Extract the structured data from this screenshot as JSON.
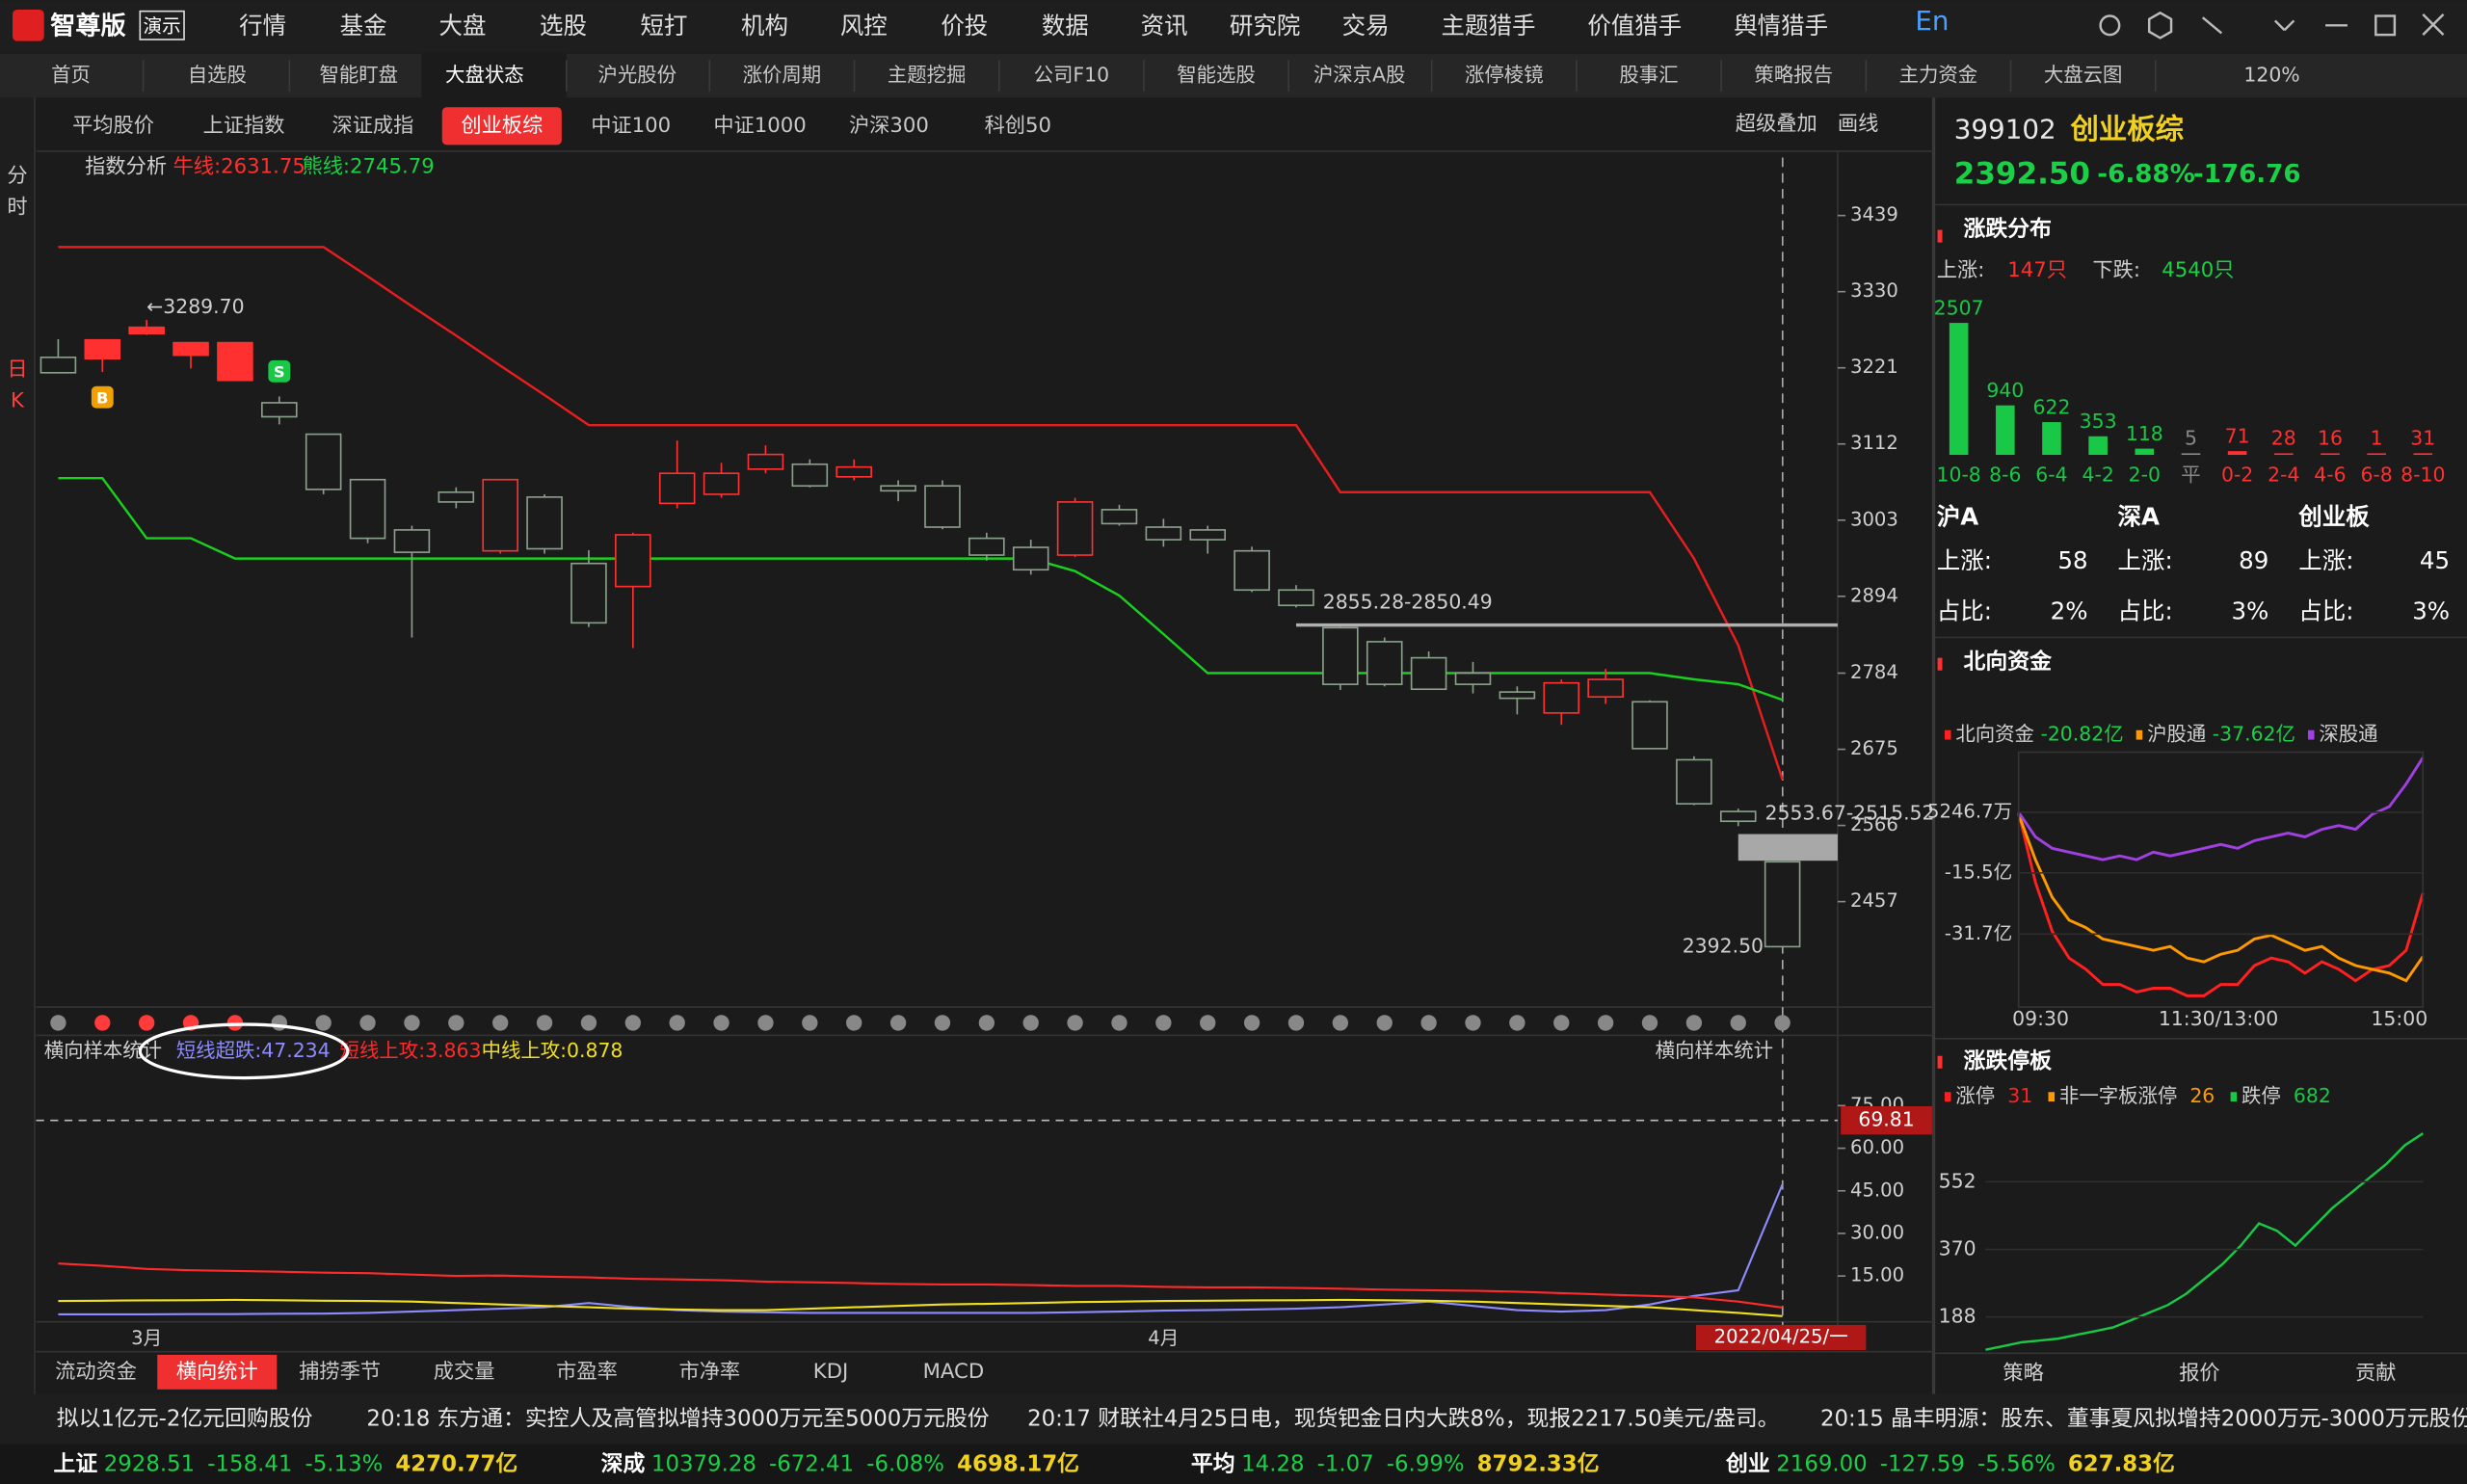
{
  "menu": {
    "logo": "智尊版",
    "badge": "演示",
    "items": [
      "行情",
      "基金",
      "大盘",
      "选股",
      "短打",
      "机构",
      "风控",
      "价投",
      "数据",
      "资讯",
      "研究院",
      "交易",
      "主题猎手",
      "价值猎手",
      "舆情猎手"
    ],
    "lang": "En"
  },
  "tabs": {
    "items": [
      "首页",
      "自选股",
      "智能盯盘",
      "大盘状态",
      "沪光股份",
      "涨价周期",
      "主题挖掘",
      "公司F10",
      "智能选股",
      "沪深京A股",
      "涨停棱镜",
      "股事汇",
      "策略报告",
      "主力资金",
      "大盘云图"
    ],
    "active": 3,
    "zoom": "120%"
  },
  "index_tabs": {
    "items": [
      "平均股价",
      "上证指数",
      "深证成指",
      "创业板综",
      "中证100",
      "中证1000",
      "沪深300",
      "科创50"
    ],
    "active": 3,
    "tools": [
      "超级叠加",
      "画线"
    ]
  },
  "side_tabs": [
    "分",
    "时",
    "日",
    "K"
  ],
  "kline": {
    "type": "candlestick",
    "title": "指数分析",
    "bull_label": "牛线:2631.75",
    "bear_label": "熊线:2745.79",
    "ylim": [
      2306,
      3495
    ],
    "yticks": [
      3439,
      3330,
      3221,
      3112,
      3003,
      2894,
      2784,
      2675,
      2566,
      2457
    ],
    "open": [
      3236,
      3234,
      3270,
      3239,
      3203,
      3171,
      3126,
      3061,
      2989,
      3043,
      2959,
      3036,
      2941,
      2908,
      3027,
      3040,
      3076,
      3083,
      3065,
      3052,
      3052,
      2977,
      2964,
      2953,
      3018,
      2993,
      2989,
      2959,
      2903,
      2849,
      2829,
      2806,
      2784,
      2757,
      2727,
      2750,
      2743,
      2660,
      2586,
      2514
    ],
    "close": [
      3214,
      3261,
      3279,
      3257,
      3257,
      3151,
      3047,
      2977,
      2957,
      3029,
      3061,
      2962,
      2856,
      2982,
      3070,
      3070,
      3097,
      3052,
      3079,
      3045,
      2993,
      2953,
      2932,
      3029,
      2998,
      2975,
      2975,
      2903,
      2881,
      2768,
      2768,
      2761,
      2768,
      2748,
      2770,
      2775,
      2676,
      2597,
      2572,
      2392.5
    ],
    "high": [
      3262,
      3261,
      3289.7,
      3258,
      3258,
      3180,
      3126,
      3061,
      2995,
      3050,
      3062,
      3040,
      2960,
      2985,
      3117,
      3085,
      3110,
      3090,
      3090,
      3060,
      3060,
      2985,
      2975,
      3035,
      3025,
      3005,
      2995,
      2965,
      2910,
      2851,
      2835,
      2815,
      2800,
      2765,
      2775,
      2790,
      2745,
      2665,
      2590,
      2515
    ],
    "low": [
      3214,
      3215,
      3268,
      3220,
      3203,
      3140,
      3040,
      2970,
      2835,
      3020,
      2955,
      2955,
      2850,
      2820,
      3020,
      3035,
      3070,
      3050,
      3060,
      3030,
      2990,
      2945,
      2925,
      2950,
      2995,
      2965,
      2955,
      2900,
      2878,
      2760,
      2765,
      2760,
      2755,
      2725,
      2710,
      2740,
      2676,
      2595,
      2565,
      2392.5
    ],
    "bull": {
      "color": "#e81e1e",
      "values": [
        3394,
        3394,
        3394,
        3394,
        3394,
        3394,
        3394,
        3352,
        3309,
        3267,
        3224,
        3182,
        3139,
        3139,
        3139,
        3139,
        3139,
        3139,
        3139,
        3139,
        3139,
        3139,
        3139,
        3139,
        3139,
        3139,
        3139,
        3139,
        3139,
        3043,
        3043,
        3043,
        3043,
        3043,
        3043,
        3043,
        3043,
        2948,
        2824,
        2631.75
      ]
    },
    "bear": {
      "color": "#19d01e",
      "values": [
        3063,
        3063,
        2977,
        2977,
        2948,
        2948,
        2948,
        2948,
        2948,
        2948,
        2948,
        2948,
        2948,
        2948,
        2948,
        2948,
        2948,
        2948,
        2948,
        2948,
        2948,
        2948,
        2948,
        2930,
        2895,
        2840,
        2784,
        2784,
        2784,
        2784,
        2784,
        2784,
        2784,
        2784,
        2784,
        2784,
        2784,
        2775,
        2768,
        2745.79
      ]
    },
    "signal_colors": [
      "#888888",
      "#ff3b3b",
      "#ff3b3b",
      "#ff3b3b",
      "#ff3b3b",
      "#888888",
      "#888888",
      "#888888",
      "#888888",
      "#888888",
      "#888888",
      "#888888",
      "#888888",
      "#888888",
      "#888888",
      "#888888",
      "#888888",
      "#888888",
      "#888888",
      "#888888",
      "#888888",
      "#888888",
      "#888888",
      "#888888",
      "#888888",
      "#888888",
      "#888888",
      "#888888",
      "#888888",
      "#888888",
      "#888888",
      "#888888",
      "#888888",
      "#888888",
      "#888888",
      "#888888",
      "#888888",
      "#888888",
      "#888888",
      "#888888"
    ],
    "markers": [
      {
        "index": 1,
        "label": "B",
        "color": "#f0a000"
      },
      {
        "index": 5,
        "label": "S",
        "color": "#19c846"
      }
    ],
    "annotations": [
      {
        "text": "←3289.70",
        "index": 2,
        "value": 3289.7
      },
      {
        "text": "2392.50",
        "index": 39,
        "value": 2392.5
      }
    ],
    "gaps": [
      {
        "text": "2855.28-2850.49",
        "high": 2855.28,
        "low": 2850.49,
        "from": 28,
        "color": "#b0b0b0"
      },
      {
        "text": "2553.67-2515.52",
        "high": 2553.67,
        "low": 2515.52,
        "from": 38,
        "color": "#a8a8a8"
      }
    ]
  },
  "panel": {
    "type": "line",
    "title": "横向样本统计",
    "title_right": "横向样本统计",
    "categories": [
      null,
      null,
      "3月",
      null,
      null,
      null,
      null,
      null,
      null,
      null,
      null,
      null,
      null,
      null,
      null,
      null,
      null,
      null,
      null,
      null,
      null,
      null,
      null,
      null,
      null,
      "4月",
      null,
      null,
      null,
      null,
      null,
      null,
      null,
      null,
      null,
      null,
      null,
      null,
      null,
      null
    ],
    "cursor_date": "2022/04/25/一",
    "ylim": [
      0,
      82
    ],
    "yticks": [
      {
        "value": 75,
        "label": "75.00"
      },
      {
        "value": 60,
        "label": "60.00"
      },
      {
        "value": 45,
        "label": "45.00"
      },
      {
        "value": 30,
        "label": "30.00"
      },
      {
        "value": 15,
        "label": "15.00"
      }
    ],
    "marker": {
      "value": 69.81,
      "label": "69.81"
    },
    "series": [
      {
        "label": "短线超跌:47.234",
        "color": "#8c8cff",
        "values": [
          1.5,
          1.5,
          1.5,
          1.6,
          1.6,
          1.7,
          1.8,
          2,
          2.5,
          3,
          3.5,
          4,
          5.5,
          4,
          3,
          2.5,
          2.2,
          2,
          2,
          2,
          2,
          2,
          2,
          2.2,
          2.5,
          2.8,
          3,
          3.2,
          3.5,
          4,
          5,
          6,
          4.5,
          3,
          2.5,
          3,
          5,
          8,
          10,
          47.234
        ]
      },
      {
        "label": "短线上攻:3.863",
        "color": "#ff2a2a",
        "values": [
          19.4,
          18.6,
          17.5,
          17,
          16.8,
          16.5,
          16.2,
          16,
          15.5,
          15,
          15.2,
          14.8,
          14.5,
          14,
          13.8,
          13.5,
          13,
          12.8,
          12.5,
          12.2,
          12,
          12,
          11.8,
          11.5,
          11.5,
          11.2,
          11,
          11,
          10.8,
          10.5,
          10.2,
          10,
          9.8,
          9.5,
          9,
          8.5,
          8,
          7.5,
          6,
          3.863
        ]
      },
      {
        "label": "中线上攻:0.878",
        "color": "#f0e020",
        "values": [
          6.2,
          6.3,
          6.4,
          6.5,
          6.6,
          6.5,
          6.3,
          6.2,
          6,
          5.5,
          5,
          4.5,
          4,
          3.5,
          3.2,
          3,
          3,
          3.5,
          4,
          4.5,
          5,
          5.2,
          5.5,
          5.8,
          6,
          6.2,
          6.3,
          6.4,
          6.5,
          6.6,
          6.5,
          6.3,
          6,
          5.5,
          5,
          4.5,
          4,
          3,
          2,
          0.878
        ]
      }
    ]
  },
  "bottom_tabs": {
    "items": [
      "流动资金",
      "横向统计",
      "捕捞季节",
      "成交量",
      "市盈率",
      "市净率",
      "KDJ",
      "MACD"
    ],
    "active": 1
  },
  "right": {
    "code": "399102",
    "name": "创业板综",
    "price": "2392.50",
    "pct": "-6.88%",
    "change": "-176.76",
    "dist": {
      "type": "bar",
      "title": "涨跌分布",
      "up_label": "上涨:",
      "up": "147只",
      "down_label": "下跌:",
      "down": "4540只",
      "categories": [
        "10-8",
        "8-6",
        "6-4",
        "4-2",
        "2-0",
        "平",
        "0-2",
        "2-4",
        "4-6",
        "6-8",
        "8-10"
      ],
      "values": [
        2507,
        940,
        622,
        353,
        118,
        5,
        71,
        28,
        16,
        1,
        31
      ],
      "colors": [
        "#19c846",
        "#19c846",
        "#19c846",
        "#19c846",
        "#19c846",
        "#888888",
        "#ff3030",
        "#ff3030",
        "#ff3030",
        "#ff3030",
        "#ff3030"
      ],
      "ylim": [
        0,
        2600
      ]
    },
    "breadth": [
      {
        "name": "沪A",
        "up_label": "上涨:",
        "up": 58,
        "ratio_label": "占比:",
        "ratio": "2%"
      },
      {
        "name": "深A",
        "up_label": "上涨:",
        "up": 89,
        "ratio_label": "占比:",
        "ratio": "3%"
      },
      {
        "name": "创业板",
        "up_label": "上涨:",
        "up": 45,
        "ratio_label": "占比:",
        "ratio": "3%"
      }
    ],
    "north": {
      "type": "line",
      "title": "北向资金",
      "ylim": [
        -51,
        16.4
      ],
      "yticks": [
        {
          "value": 0.52467,
          "label": "5246.7万"
        },
        {
          "value": -15.5,
          "label": "-15.5亿"
        },
        {
          "value": -31.7,
          "label": "-31.7亿"
        }
      ],
      "xticks": [
        "09:30",
        "11:30/13:00",
        "15:00"
      ],
      "series": [
        {
          "name": "北向资金",
          "value_label": "-20.82亿",
          "color": "#ff2020",
          "values": [
            0.5,
            -18,
            -31,
            -38,
            -41,
            -45,
            -45,
            -47,
            -46,
            -46,
            -48,
            -48,
            -45,
            -45,
            -40,
            -38,
            -39,
            -42,
            -39,
            -41,
            -44,
            -41,
            -40,
            -36,
            -20.82
          ]
        },
        {
          "name": "沪股通",
          "value_label": "-37.62亿",
          "color": "#ff9900",
          "values": [
            0,
            -12,
            -22,
            -28,
            -30,
            -33,
            -34,
            -35,
            -36,
            -35,
            -38,
            -39,
            -37,
            -36,
            -33,
            -32,
            -34,
            -36,
            -35,
            -38,
            -40,
            -41,
            -42,
            -44,
            -37.62
          ]
        },
        {
          "name": "深股通",
          "color": "#a040e0",
          "values": [
            0.5,
            -6,
            -9,
            -10,
            -11,
            -12,
            -11,
            -12,
            -10,
            -11,
            -10,
            -9,
            -8,
            -9,
            -7,
            -6,
            -5,
            -6,
            -4,
            -3,
            -4,
            0,
            2,
            8,
            15
          ]
        }
      ]
    },
    "limit": {
      "type": "line",
      "title": "涨跌停板",
      "ylim": [
        99,
        768
      ],
      "yticks": [
        552,
        370,
        188
      ],
      "legend": [
        {
          "name": "涨停",
          "value": 31,
          "color": "#ff2020"
        },
        {
          "name": "非一字板涨停",
          "value": 26,
          "color": "#ff9900"
        },
        {
          "name": "跌停",
          "value": 682,
          "color": "#19c846",
          "values": [
            100,
            110,
            120,
            125,
            130,
            140,
            150,
            160,
            180,
            200,
            220,
            250,
            290,
            330,
            380,
            440,
            420,
            380,
            430,
            480,
            520,
            560,
            600,
            650,
            682
          ]
        }
      ]
    },
    "tabs": [
      "策略",
      "报价",
      "贡献"
    ]
  },
  "news": [
    "拟以1亿元-2亿元回购股份",
    "20:18 东方通：实控人及高管拟增持3000万元至5000万元股份",
    "20:17 财联社4月25日电，现货钯金日内大跌8%，现报2217.50美元/盎司。",
    "20:15 晶丰明源：股东、董事夏风拟增持2000万元-3000万元股份"
  ],
  "indices": [
    {
      "name": "上证",
      "price": "2928.51",
      "change": "-158.41",
      "pct": "-5.13%",
      "amount": "4270.77亿"
    },
    {
      "name": "深成",
      "price": "10379.28",
      "change": "-672.41",
      "pct": "-6.08%",
      "amount": "4698.17亿"
    },
    {
      "name": "平均",
      "price": "14.28",
      "change": "-1.07",
      "pct": "-6.99%",
      "amount": "8792.33亿"
    },
    {
      "name": "创业",
      "price": "2169.00",
      "change": "-127.59",
      "pct": "-5.56%",
      "amount": "627.83亿"
    }
  ]
}
